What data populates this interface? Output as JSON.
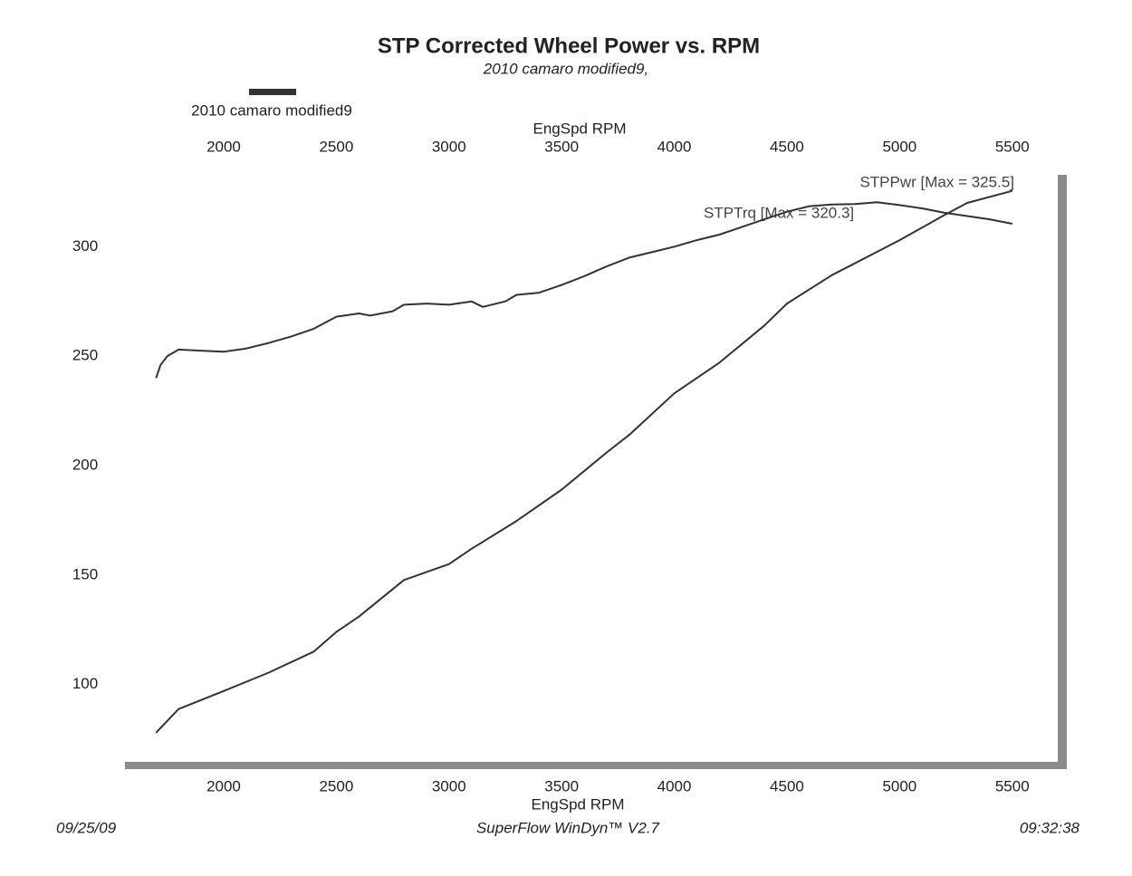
{
  "chart_data": {
    "type": "line",
    "title": "STP Corrected Wheel Power vs. RPM",
    "subtitle": "2010 camaro modified9,",
    "legend": {
      "label": "2010 camaro modified9",
      "color": "#333333"
    },
    "x_label": "EngSpd  RPM",
    "x2_label": "EngSpd  RPM",
    "xlim": [
      1570,
      5710
    ],
    "xticks": [
      2000,
      2500,
      3000,
      3500,
      4000,
      4500,
      5000,
      5500
    ],
    "ylim": [
      63,
      332
    ],
    "yticks": [
      100,
      150,
      200,
      250,
      300
    ],
    "grid": false,
    "series": [
      {
        "color": "#333333",
        "x": [
          1700,
          1720,
          1750,
          1800,
          1900,
          2000,
          2100,
          2200,
          2300,
          2400,
          2500,
          2600,
          2650,
          2750,
          2800,
          2900,
          3000,
          3100,
          3150,
          3250,
          3300,
          3400,
          3500,
          3600,
          3700,
          3800,
          3900,
          4000,
          4100,
          4200,
          4300,
          4400,
          4500,
          4600,
          4700,
          4800,
          4900,
          5000,
          5100,
          5200,
          5300,
          5400,
          5500
        ],
        "values": [
          240,
          246,
          250,
          253,
          252.5,
          252,
          253.5,
          256,
          259,
          262.5,
          268,
          269.5,
          268.5,
          270.5,
          273.5,
          274,
          273.5,
          275,
          272.5,
          275,
          278,
          279,
          282.5,
          286.5,
          291,
          295,
          297.5,
          300,
          303,
          305.5,
          309,
          312.5,
          316,
          318.5,
          319.3,
          319.5,
          320.3,
          319,
          317.5,
          315.5,
          314,
          312.5,
          310.5
        ]
      },
      {
        "color": "#333333",
        "x": [
          1700,
          1800,
          2000,
          2200,
          2400,
          2500,
          2600,
          2800,
          3000,
          3100,
          3300,
          3500,
          3700,
          3800,
          4000,
          4200,
          4400,
          4500,
          4700,
          5000,
          5200,
          5300,
          5500
        ],
        "values": [
          78,
          88.8,
          97,
          105.4,
          115,
          124,
          131,
          147.7,
          155,
          162,
          174.7,
          189,
          206,
          214,
          233,
          247,
          264,
          274,
          287,
          303,
          314.5,
          320,
          325.5
        ]
      }
    ],
    "annotations": [
      "STPPwr [Max = 325.5]",
      "STPTrq [Max = 320.3]"
    ],
    "footer": {
      "date": "09/25/09",
      "software": "SuperFlow WinDyn™ V2.7",
      "time": "09:32:38"
    }
  }
}
